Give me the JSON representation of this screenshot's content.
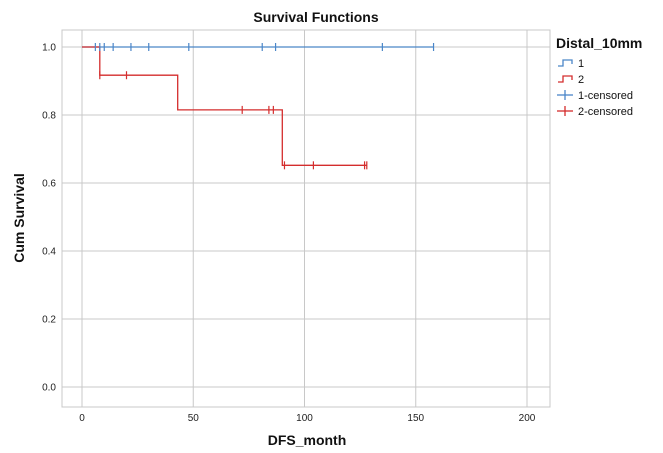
{
  "chart_data": {
    "type": "line",
    "title": "Survival Functions",
    "xlabel": "DFS_month",
    "ylabel": "Cum Survival",
    "xlim": [
      0,
      210
    ],
    "ylim": [
      0,
      1.05
    ],
    "x_ticks": [
      "0",
      "50",
      "100",
      "150",
      "200"
    ],
    "y_ticks": [
      "0.0",
      "0.2",
      "0.4",
      "0.6",
      "0.8",
      "1.0"
    ],
    "grid": true,
    "legend_title": "Distal_10mm",
    "legend_position": "top-right",
    "colors": {
      "series1": "#4a86c8",
      "series2": "#d42d2d"
    },
    "series": [
      {
        "name": "1",
        "step": [
          [
            0,
            1.0
          ],
          [
            158,
            1.0
          ]
        ],
        "censored": [
          [
            6,
            1.0
          ],
          [
            8,
            1.0
          ],
          [
            10,
            1.0
          ],
          [
            14,
            1.0
          ],
          [
            22,
            1.0
          ],
          [
            30,
            1.0
          ],
          [
            48,
            1.0
          ],
          [
            81,
            1.0
          ],
          [
            87,
            1.0
          ],
          [
            135,
            1.0
          ],
          [
            158,
            1.0
          ]
        ]
      },
      {
        "name": "2",
        "step": [
          [
            0,
            1.0
          ],
          [
            8,
            1.0
          ],
          [
            8,
            0.917
          ],
          [
            43,
            0.917
          ],
          [
            43,
            0.815
          ],
          [
            90,
            0.815
          ],
          [
            90,
            0.652
          ],
          [
            128,
            0.652
          ]
        ],
        "censored": [
          [
            8,
            0.917
          ],
          [
            20,
            0.917
          ],
          [
            72,
            0.815
          ],
          [
            84,
            0.815
          ],
          [
            86,
            0.815
          ],
          [
            91,
            0.652
          ],
          [
            104,
            0.652
          ],
          [
            127,
            0.652
          ],
          [
            128,
            0.652
          ]
        ]
      }
    ],
    "legend": [
      "1",
      "2",
      "1-censored",
      "2-censored"
    ]
  }
}
